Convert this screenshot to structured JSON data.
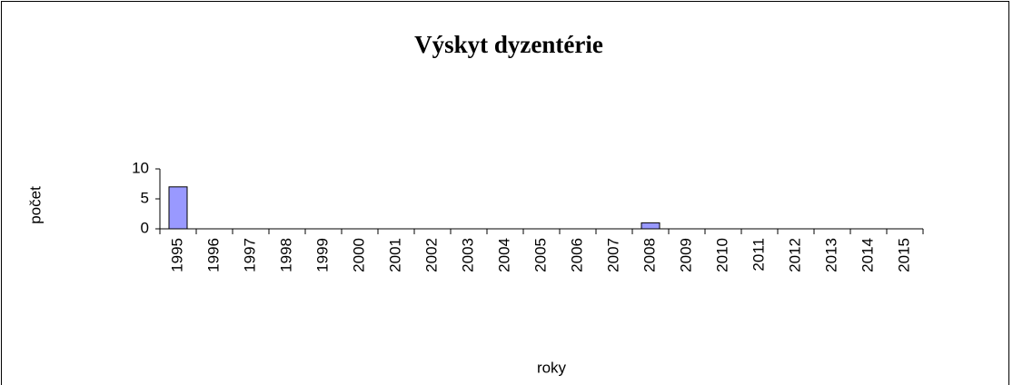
{
  "chart_data": {
    "type": "bar",
    "title": "Výskyt dyzentérie",
    "categories": [
      "1995",
      "1996",
      "1997",
      "1998",
      "1999",
      "2000",
      "2001",
      "2002",
      "2003",
      "2004",
      "2005",
      "2006",
      "2007",
      "2008",
      "2009",
      "2010",
      "2011",
      "2012",
      "2013",
      "2014",
      "2015"
    ],
    "values": [
      7,
      0,
      0,
      0,
      0,
      0,
      0,
      0,
      0,
      0,
      0,
      0,
      0,
      1,
      0,
      0,
      0,
      0,
      0,
      0,
      0
    ],
    "color": "#9999ff",
    "ylim": [
      0,
      10
    ],
    "yticks": [
      0,
      5,
      10
    ],
    "grid": false,
    "xlabel": "roky",
    "ylabel": "počet"
  }
}
